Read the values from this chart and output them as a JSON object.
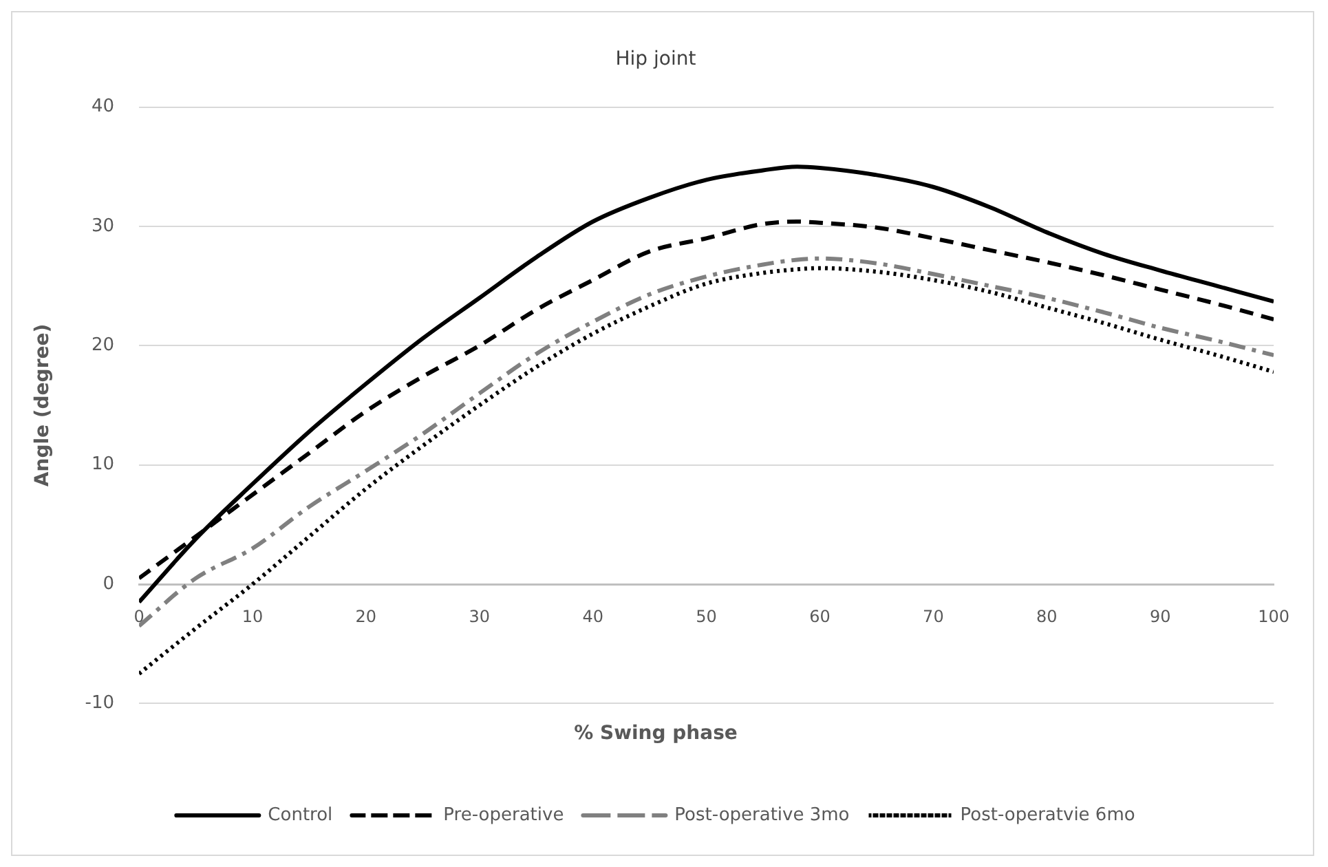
{
  "chart_data": {
    "type": "line",
    "title": "Hip joint",
    "xlabel": "% Swing phase",
    "ylabel": "Angle (degree)",
    "x": [
      0,
      5,
      10,
      15,
      20,
      25,
      30,
      35,
      40,
      45,
      50,
      55,
      58,
      60,
      65,
      70,
      75,
      80,
      85,
      90,
      95,
      100
    ],
    "series": [
      {
        "name": "Control",
        "color": "#000000",
        "line_style": "solid",
        "values": [
          -1.5,
          3.8,
          8.4,
          12.8,
          16.8,
          20.6,
          24,
          27.4,
          30.4,
          32.4,
          33.9,
          34.7,
          35,
          34.9,
          34.3,
          33.3,
          31.6,
          29.5,
          27.7,
          26.3,
          25,
          23.7
        ]
      },
      {
        "name": "Pre-operative",
        "color": "#000000",
        "line_style": "dashed",
        "values": [
          0.5,
          4,
          7.5,
          11,
          14.5,
          17.4,
          20,
          23,
          25.5,
          27.9,
          29,
          30.2,
          30.4,
          30.3,
          29.9,
          29,
          28,
          27,
          25.9,
          24.7,
          23.5,
          22.2
        ]
      },
      {
        "name": "Post-operative 3mo",
        "color": "#808080",
        "line_style": "dashdot",
        "values": [
          -3.5,
          0.5,
          3,
          6.5,
          9.5,
          12.6,
          16,
          19.3,
          22,
          24.3,
          25.8,
          26.8,
          27.2,
          27.3,
          26.9,
          26,
          25,
          24,
          22.8,
          21.5,
          20.4,
          19.2
        ]
      },
      {
        "name": "Post-operatvie 6mo",
        "color": "#000000",
        "line_style": "dotted",
        "values": [
          -7.5,
          -3.7,
          0,
          4,
          8,
          11.6,
          15,
          18.2,
          21,
          23.3,
          25.2,
          26.1,
          26.4,
          26.5,
          26.2,
          25.5,
          24.5,
          23.2,
          21.9,
          20.5,
          19.2,
          17.8
        ]
      }
    ],
    "xlim": [
      0,
      100
    ],
    "xticks": [
      0,
      10,
      20,
      30,
      40,
      50,
      60,
      70,
      80,
      90,
      100
    ],
    "ylim": [
      -10,
      40
    ],
    "yticks": [
      -10,
      0,
      10,
      20,
      30,
      40
    ],
    "grid": "y",
    "legend": "bottom",
    "marker": "none"
  }
}
